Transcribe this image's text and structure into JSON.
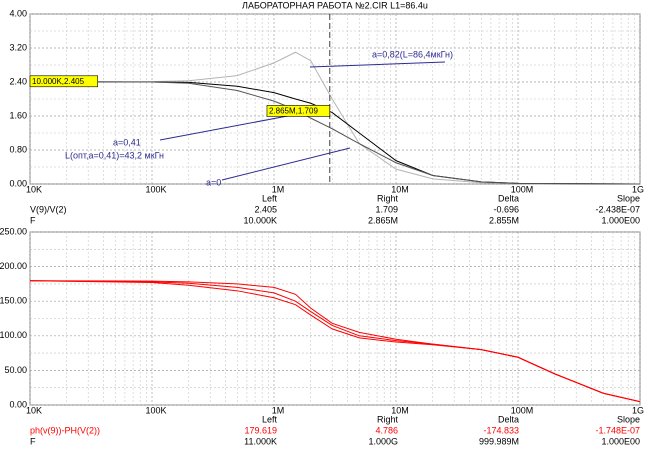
{
  "chart_data": [
    {
      "type": "line",
      "title": "ЛАБОРАТОРНАЯ РАБОТА №2.CIR L1=86.4u",
      "xscale": "log",
      "grid": true,
      "xlim": [
        10000,
        1000000000
      ],
      "xticks": [
        {
          "value": 10000,
          "label": "10K"
        },
        {
          "value": 100000,
          "label": "100K"
        },
        {
          "value": 1000000,
          "label": "1M"
        },
        {
          "value": 10000000,
          "label": "10M"
        },
        {
          "value": 100000000,
          "label": "100M"
        },
        {
          "value": 1000000000,
          "label": "1G"
        }
      ],
      "ylim": [
        0,
        4
      ],
      "yticks": [
        {
          "value": 0,
          "label": "0.00"
        },
        {
          "value": 0.8,
          "label": "0.80"
        },
        {
          "value": 1.6,
          "label": "1.60"
        },
        {
          "value": 2.4,
          "label": "2.40"
        },
        {
          "value": 3.2,
          "label": "3.20"
        },
        {
          "value": 4,
          "label": "4.00"
        }
      ],
      "x": [
        10000,
        100000,
        200000,
        500000,
        1000000,
        1500000,
        2000000,
        3000000,
        5000000,
        10000000,
        20000000,
        50000000,
        100000000,
        1000000000
      ],
      "series": [
        {
          "color": "#b4b4b4",
          "values": [
            2.405,
            2.41,
            2.43,
            2.55,
            2.85,
            3.1,
            2.9,
            2.0,
            0.95,
            0.35,
            0.12,
            0.03,
            0.01,
            0
          ]
        },
        {
          "color": "#000000",
          "values": [
            2.405,
            2.4,
            2.39,
            2.3,
            2.15,
            2.0,
            1.9,
            1.68,
            1.2,
            0.55,
            0.2,
            0.05,
            0.015,
            0
          ]
        },
        {
          "color": "#555555",
          "values": [
            2.405,
            2.4,
            2.37,
            2.2,
            1.95,
            1.75,
            1.55,
            1.3,
            0.95,
            0.5,
            0.2,
            0.05,
            0.015,
            0
          ]
        }
      ],
      "annotations": [
        "a=0,82(L=86,4мкГн)",
        "a=0,41",
        "L(опт,a=0,41)=43,2 мкГн",
        "a=0"
      ],
      "cursors": [
        {
          "x": 10000,
          "y": 2.405,
          "label": "10.000K,2.405"
        },
        {
          "x": 2865000,
          "y": 1.709,
          "label": "2.865M,1.709"
        }
      ],
      "readout": {
        "color": "#000000",
        "header": [
          "Left",
          "Right",
          "Delta",
          "Slope"
        ],
        "rows": [
          [
            "V(9)/V(2)",
            "2.405",
            "1.709",
            "-0.696",
            "-2.438E-07"
          ],
          [
            "F",
            "10.000K",
            "2.865M",
            "2.855M",
            "1.000E00"
          ]
        ]
      }
    },
    {
      "type": "line",
      "xscale": "log",
      "grid": true,
      "xlim": [
        10000,
        1000000000
      ],
      "xticks": [
        {
          "value": 10000,
          "label": "10K"
        },
        {
          "value": 100000,
          "label": "100K"
        },
        {
          "value": 1000000,
          "label": "1M"
        },
        {
          "value": 10000000,
          "label": "10M"
        },
        {
          "value": 100000000,
          "label": "100M"
        },
        {
          "value": 1000000000,
          "label": "1G"
        }
      ],
      "ylim": [
        0,
        250
      ],
      "yticks": [
        {
          "value": 0,
          "label": "0.00"
        },
        {
          "value": 50,
          "label": "50.00"
        },
        {
          "value": 100,
          "label": "100.00"
        },
        {
          "value": 150,
          "label": "150.00"
        },
        {
          "value": 200,
          "label": "200.00"
        },
        {
          "value": 250,
          "label": "250.00"
        }
      ],
      "x": [
        10000,
        100000,
        200000,
        500000,
        1000000,
        1500000,
        2000000,
        3000000,
        5000000,
        10000000,
        20000000,
        50000000,
        100000000,
        200000000,
        500000000,
        1000000000
      ],
      "series": [
        {
          "color": "#ff0000",
          "values": [
            179.6,
            179,
            178,
            175,
            170,
            160,
            140,
            118,
            105,
            95,
            88,
            80,
            69,
            45,
            17,
            4.8
          ]
        },
        {
          "color": "#ff0000",
          "values": [
            179.6,
            178,
            176,
            170,
            162,
            150,
            135,
            115,
            100,
            93,
            88,
            80,
            69,
            45,
            17,
            4.8
          ]
        },
        {
          "color": "#ff0000",
          "values": [
            179.6,
            177,
            173,
            165,
            155,
            145,
            130,
            110,
            97,
            91,
            87,
            80,
            69,
            45,
            17,
            4.8
          ]
        }
      ],
      "readout": {
        "color": "#ff0000",
        "header": [
          "Left",
          "Right",
          "Delta",
          "Slope"
        ],
        "rows": [
          [
            "ph(v(9))-PH(V(2))",
            "179.619",
            "4.786",
            "-174.833",
            "-1.748E-07"
          ],
          [
            "F",
            "11.000K",
            "1.000G",
            "999.989M",
            "1.000E00"
          ]
        ]
      }
    }
  ]
}
